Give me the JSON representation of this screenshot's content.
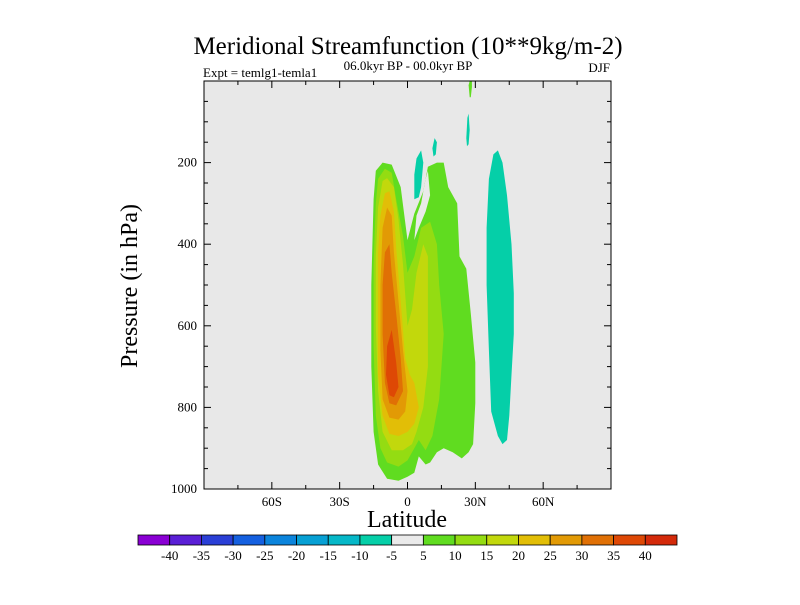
{
  "chart_data": {
    "type": "heatmap",
    "title": "Meridional Streamfunction (10**9kg/m-2)",
    "experiment_label": "Expt = temlg1-temla1",
    "period_label": "06.0kyr BP - 00.0kyr BP",
    "season_label": "DJF",
    "xlabel": "Latitude",
    "ylabel": "Pressure (in hPa)",
    "x_ticks": [
      {
        "value": -60,
        "label": "60S"
      },
      {
        "value": -30,
        "label": "30S"
      },
      {
        "value": 0,
        "label": "0"
      },
      {
        "value": 30,
        "label": "30N"
      },
      {
        "value": 60,
        "label": "60N"
      }
    ],
    "y_ticks": [
      {
        "value": 200,
        "label": "200"
      },
      {
        "value": 400,
        "label": "400"
      },
      {
        "value": 600,
        "label": "600"
      },
      {
        "value": 800,
        "label": "800"
      },
      {
        "value": 1000,
        "label": "1000"
      }
    ],
    "xlim": [
      -90,
      90
    ],
    "ylim": [
      1000,
      0
    ],
    "background_color": "#e8e8e8",
    "colorbar": {
      "labels": [
        "-40",
        "-35",
        "-30",
        "-25",
        "-20",
        "-15",
        "-10",
        "-5",
        "5",
        "10",
        "15",
        "20",
        "25",
        "30",
        "35",
        "40"
      ],
      "colors": [
        "#8a00d4",
        "#5a1fd6",
        "#2a3fd6",
        "#1560e0",
        "#0b84dc",
        "#07a0d4",
        "#06b8c8",
        "#05cfa8",
        "#eaeaea",
        "#60dc20",
        "#94dc12",
        "#c2d80c",
        "#e2be07",
        "#e29a05",
        "#e07005",
        "#de4805",
        "#d42a0a"
      ]
    },
    "regions": [
      {
        "level": 5,
        "color": "#60dc20",
        "points": [
          [
            -15,
            290
          ],
          [
            -14,
            220
          ],
          [
            -11,
            200
          ],
          [
            -7,
            205
          ],
          [
            -3,
            260
          ],
          [
            0,
            390
          ],
          [
            3,
            325
          ],
          [
            7,
            270
          ],
          [
            9,
            210
          ],
          [
            13,
            200
          ],
          [
            16,
            200
          ],
          [
            18,
            260
          ],
          [
            22,
            300
          ],
          [
            23,
            430
          ],
          [
            26,
            460
          ],
          [
            28,
            570
          ],
          [
            30,
            690
          ],
          [
            30,
            790
          ],
          [
            29,
            890
          ],
          [
            27,
            910
          ],
          [
            24,
            925
          ],
          [
            20,
            910
          ],
          [
            16,
            900
          ],
          [
            13,
            910
          ],
          [
            10,
            935
          ],
          [
            8,
            940
          ],
          [
            5,
            920
          ],
          [
            3,
            960
          ],
          [
            0,
            970
          ],
          [
            -4,
            980
          ],
          [
            -9,
            975
          ],
          [
            -13,
            940
          ],
          [
            -15,
            860
          ],
          [
            -16,
            700
          ],
          [
            -16,
            500
          ]
        ]
      },
      {
        "level": 10,
        "color": "#94dc12",
        "points": [
          [
            -14,
            300
          ],
          [
            -13,
            240
          ],
          [
            -10,
            215
          ],
          [
            -7,
            225
          ],
          [
            -5,
            290
          ],
          [
            -2,
            380
          ],
          [
            0,
            470
          ],
          [
            3,
            430
          ],
          [
            6,
            360
          ],
          [
            10,
            345
          ],
          [
            13,
            400
          ],
          [
            14,
            500
          ],
          [
            16,
            620
          ],
          [
            14,
            780
          ],
          [
            11,
            870
          ],
          [
            8,
            905
          ],
          [
            5,
            880
          ],
          [
            3,
            900
          ],
          [
            0,
            930
          ],
          [
            -4,
            945
          ],
          [
            -9,
            935
          ],
          [
            -12,
            900
          ],
          [
            -14,
            820
          ],
          [
            -15,
            650
          ],
          [
            -15,
            450
          ]
        ]
      },
      {
        "level": 15,
        "color": "#c2d80c",
        "points": [
          [
            -13,
            310
          ],
          [
            -11,
            245
          ],
          [
            -9,
            238
          ],
          [
            -6,
            260
          ],
          [
            -4,
            340
          ],
          [
            -2,
            450
          ],
          [
            0,
            600
          ],
          [
            2,
            560
          ],
          [
            4,
            470
          ],
          [
            7,
            400
          ],
          [
            9,
            430
          ],
          [
            9,
            560
          ],
          [
            9,
            700
          ],
          [
            7,
            800
          ],
          [
            4,
            860
          ],
          [
            2,
            890
          ],
          [
            -2,
            905
          ],
          [
            -7,
            905
          ],
          [
            -11,
            860
          ],
          [
            -13,
            760
          ],
          [
            -14,
            600
          ],
          [
            -14,
            430
          ]
        ]
      },
      {
        "level": 20,
        "color": "#e2be07",
        "points": [
          [
            -12,
            330
          ],
          [
            -10,
            275
          ],
          [
            -8,
            270
          ],
          [
            -6,
            320
          ],
          [
            -5,
            410
          ],
          [
            -3,
            540
          ],
          [
            -1,
            680
          ],
          [
            1,
            720
          ],
          [
            3,
            740
          ],
          [
            5,
            800
          ],
          [
            3,
            840
          ],
          [
            0,
            860
          ],
          [
            -4,
            870
          ],
          [
            -8,
            865
          ],
          [
            -11,
            820
          ],
          [
            -13,
            720
          ],
          [
            -13,
            560
          ],
          [
            -13,
            420
          ]
        ]
      },
      {
        "level": 25,
        "color": "#e29a05",
        "points": [
          [
            -11,
            360
          ],
          [
            -9,
            310
          ],
          [
            -7,
            330
          ],
          [
            -6,
            420
          ],
          [
            -4,
            540
          ],
          [
            -2,
            660
          ],
          [
            0,
            760
          ],
          [
            -1,
            810
          ],
          [
            -4,
            830
          ],
          [
            -8,
            825
          ],
          [
            -11,
            780
          ],
          [
            -12,
            660
          ],
          [
            -12,
            500
          ]
        ]
      },
      {
        "level": 30,
        "color": "#e07005",
        "points": [
          [
            -10,
            420
          ],
          [
            -8,
            400
          ],
          [
            -7,
            470
          ],
          [
            -5,
            570
          ],
          [
            -3,
            680
          ],
          [
            -2,
            760
          ],
          [
            -5,
            795
          ],
          [
            -8,
            790
          ],
          [
            -10,
            740
          ],
          [
            -11,
            620
          ],
          [
            -11,
            500
          ]
        ]
      },
      {
        "level": 35,
        "color": "#de4805",
        "points": [
          [
            -9,
            650
          ],
          [
            -7,
            610
          ],
          [
            -5,
            690
          ],
          [
            -4,
            750
          ],
          [
            -6,
            775
          ],
          [
            -8,
            770
          ],
          [
            -9.5,
            720
          ]
        ]
      },
      {
        "level": 5,
        "color": "#eaeaea",
        "points": [
          [
            3,
            390
          ],
          [
            4,
            330
          ],
          [
            6,
            300
          ],
          [
            8,
            240
          ],
          [
            9,
            220
          ],
          [
            10,
            280
          ],
          [
            8,
            320
          ],
          [
            5,
            360
          ]
        ]
      },
      {
        "level": -5,
        "color": "#05cfa8",
        "points": [
          [
            36,
            240
          ],
          [
            38,
            180
          ],
          [
            40,
            170
          ],
          [
            42,
            200
          ],
          [
            44,
            280
          ],
          [
            46,
            400
          ],
          [
            47,
            520
          ],
          [
            47,
            620
          ],
          [
            46,
            720
          ],
          [
            45,
            820
          ],
          [
            44,
            880
          ],
          [
            42,
            890
          ],
          [
            40,
            870
          ],
          [
            37,
            810
          ],
          [
            36,
            660
          ],
          [
            35,
            500
          ],
          [
            35,
            360
          ]
        ]
      },
      {
        "level": -5,
        "color": "#05cfa8",
        "points": [
          [
            3,
            290
          ],
          [
            3,
            230
          ],
          [
            4,
            190
          ],
          [
            6,
            170
          ],
          [
            7,
            200
          ],
          [
            6,
            260
          ],
          [
            5,
            285
          ]
        ]
      },
      {
        "level": -5,
        "color": "#05cfa8",
        "points": [
          [
            11,
            165
          ],
          [
            12,
            140
          ],
          [
            13,
            150
          ],
          [
            12.5,
            180
          ],
          [
            11.5,
            185
          ]
        ]
      },
      {
        "level": -5,
        "color": "#05cfa8",
        "points": [
          [
            26,
            140
          ],
          [
            26.5,
            90
          ],
          [
            27,
            80
          ],
          [
            27.5,
            120
          ],
          [
            27,
            155
          ],
          [
            26.3,
            160
          ]
        ]
      },
      {
        "level": 5,
        "color": "#60dc20",
        "points": [
          [
            27,
            10
          ],
          [
            27.5,
            0
          ],
          [
            28.5,
            0
          ],
          [
            28.5,
            15
          ],
          [
            28,
            40
          ],
          [
            27.5,
            40
          ]
        ]
      }
    ]
  }
}
